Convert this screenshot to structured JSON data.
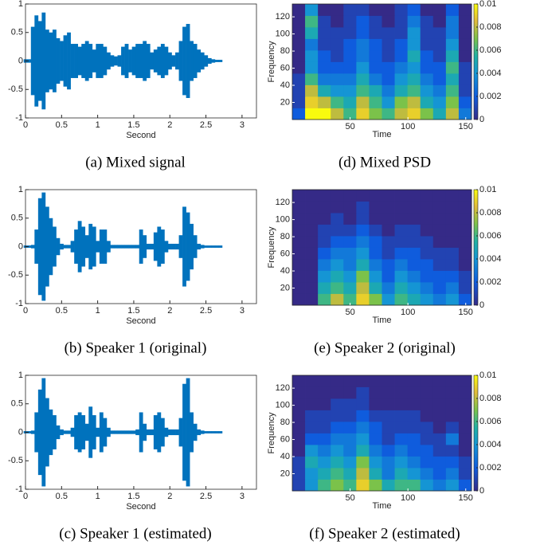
{
  "chart_data": [
    {
      "type": "waveform",
      "caption": "(a) Mixed signal",
      "xlabel": "Second",
      "color": "#0072bd",
      "x": [
        0,
        0.05,
        0.1,
        0.15,
        0.2,
        0.25,
        0.3,
        0.35,
        0.4,
        0.45,
        0.5,
        0.55,
        0.6,
        0.65,
        0.7,
        0.75,
        0.8,
        0.85,
        0.9,
        0.95,
        1,
        1.05,
        1.1,
        1.15,
        1.2,
        1.25,
        1.3,
        1.35,
        1.4,
        1.45,
        1.5,
        1.55,
        1.6,
        1.65,
        1.7,
        1.75,
        1.8,
        1.85,
        1.9,
        1.95,
        2,
        2.05,
        2.1,
        2.15,
        2.2,
        2.25,
        2.3,
        2.35,
        2.4,
        2.45,
        2.5,
        2.55,
        2.6,
        2.65,
        2.7
      ],
      "values": [
        0.03,
        0.03,
        0.6,
        0.8,
        0.7,
        0.85,
        0.55,
        0.5,
        0.55,
        0.4,
        0.35,
        0.45,
        0.5,
        0.3,
        0.3,
        0.25,
        0.3,
        0.35,
        0.3,
        0.2,
        0.3,
        0.3,
        0.25,
        0.15,
        0.1,
        0.08,
        0.1,
        0.25,
        0.3,
        0.2,
        0.25,
        0.3,
        0.3,
        0.35,
        0.3,
        0.15,
        0.2,
        0.25,
        0.3,
        0.25,
        0.15,
        0.1,
        0.15,
        0.35,
        0.6,
        0.65,
        0.35,
        0.3,
        0.2,
        0.15,
        0.1,
        0.05,
        0.03,
        0.02,
        0.02
      ],
      "xlim": [
        0,
        3.2
      ],
      "ylim": [
        -1,
        1
      ],
      "xticks": [
        0,
        0.5,
        1,
        1.5,
        2,
        2.5,
        3
      ],
      "yticks": [
        -1,
        -0.5,
        0,
        0.5,
        1
      ]
    },
    {
      "type": "waveform",
      "caption": "(b) Speaker 1 (original)",
      "xlabel": "Second",
      "color": "#0072bd",
      "x": [
        0,
        0.05,
        0.1,
        0.15,
        0.2,
        0.25,
        0.3,
        0.35,
        0.4,
        0.45,
        0.5,
        0.55,
        0.6,
        0.65,
        0.7,
        0.75,
        0.8,
        0.85,
        0.9,
        0.95,
        1,
        1.05,
        1.1,
        1.15,
        1.2,
        1.25,
        1.3,
        1.35,
        1.4,
        1.45,
        1.5,
        1.55,
        1.6,
        1.65,
        1.7,
        1.75,
        1.8,
        1.85,
        1.9,
        1.95,
        2,
        2.05,
        2.1,
        2.15,
        2.2,
        2.25,
        2.3,
        2.35,
        2.4,
        2.45,
        2.5,
        2.55,
        2.6,
        2.65,
        2.7
      ],
      "values": [
        0.02,
        0.02,
        0.03,
        0.3,
        0.85,
        0.95,
        0.7,
        0.5,
        0.35,
        0.15,
        0.05,
        0.03,
        0.03,
        0.1,
        0.3,
        0.45,
        0.35,
        0.2,
        0.4,
        0.35,
        0.1,
        0.3,
        0.3,
        0.1,
        0.03,
        0.03,
        0.03,
        0.03,
        0.03,
        0.03,
        0.03,
        0.03,
        0.3,
        0.2,
        0.05,
        0.05,
        0.25,
        0.35,
        0.3,
        0.1,
        0.05,
        0.05,
        0.05,
        0.2,
        0.7,
        0.6,
        0.4,
        0.2,
        0.05,
        0.03,
        0.02,
        0.02,
        0.02,
        0.02,
        0.02
      ],
      "xlim": [
        0,
        3.2
      ],
      "ylim": [
        -1,
        1
      ],
      "xticks": [
        0,
        0.5,
        1,
        1.5,
        2,
        2.5,
        3
      ],
      "yticks": [
        -1,
        -0.5,
        0,
        0.5,
        1
      ]
    },
    {
      "type": "waveform",
      "caption": "(c) Speaker 1 (estimated)",
      "xlabel": "Second",
      "color": "#0072bd",
      "x": [
        0,
        0.05,
        0.1,
        0.15,
        0.2,
        0.25,
        0.3,
        0.35,
        0.4,
        0.45,
        0.5,
        0.55,
        0.6,
        0.65,
        0.7,
        0.75,
        0.8,
        0.85,
        0.9,
        0.95,
        1,
        1.05,
        1.1,
        1.15,
        1.2,
        1.25,
        1.3,
        1.35,
        1.4,
        1.45,
        1.5,
        1.55,
        1.6,
        1.65,
        1.7,
        1.75,
        1.8,
        1.85,
        1.9,
        1.95,
        2,
        2.05,
        2.1,
        2.15,
        2.2,
        2.25,
        2.3,
        2.35,
        2.4,
        2.45,
        2.5,
        2.55,
        2.6,
        2.65,
        2.7
      ],
      "values": [
        0.02,
        0.02,
        0.03,
        0.35,
        0.75,
        0.95,
        0.6,
        0.4,
        0.3,
        0.12,
        0.05,
        0.03,
        0.03,
        0.08,
        0.3,
        0.35,
        0.3,
        0.15,
        0.45,
        0.3,
        0.08,
        0.35,
        0.25,
        0.08,
        0.03,
        0.03,
        0.03,
        0.03,
        0.03,
        0.03,
        0.03,
        0.05,
        0.35,
        0.15,
        0.05,
        0.05,
        0.3,
        0.35,
        0.25,
        0.08,
        0.05,
        0.05,
        0.05,
        0.25,
        0.85,
        0.95,
        0.35,
        0.15,
        0.05,
        0.03,
        0.02,
        0.02,
        0.02,
        0.02,
        0.02
      ],
      "xlim": [
        0,
        3.2
      ],
      "ylim": [
        -1,
        1
      ],
      "xticks": [
        0,
        0.5,
        1,
        1.5,
        2,
        2.5,
        3
      ],
      "yticks": [
        -1,
        -0.5,
        0,
        0.5,
        1
      ]
    },
    {
      "type": "heatmap",
      "caption": "(d) Mixed PSD",
      "xlabel": "Time",
      "ylabel": "Frequency",
      "z": [
        [
          0.002,
          0.01,
          0.01,
          0.008,
          0.006,
          0.009,
          0.007,
          0.006,
          0.008,
          0.009,
          0.007,
          0.005,
          0.008,
          0.003
        ],
        [
          0.001,
          0.009,
          0.008,
          0.006,
          0.005,
          0.008,
          0.006,
          0.004,
          0.007,
          0.008,
          0.005,
          0.004,
          0.007,
          0.002
        ],
        [
          0.001,
          0.008,
          0.005,
          0.004,
          0.004,
          0.006,
          0.005,
          0.003,
          0.005,
          0.006,
          0.004,
          0.003,
          0.006,
          0.001
        ],
        [
          0.001,
          0.006,
          0.003,
          0.003,
          0.003,
          0.005,
          0.003,
          0.002,
          0.004,
          0.005,
          0.003,
          0.002,
          0.005,
          0.001
        ],
        [
          0,
          0.004,
          0.002,
          0.002,
          0.002,
          0.004,
          0.002,
          0.002,
          0.003,
          0.004,
          0.002,
          0.002,
          0.006,
          0.001
        ],
        [
          0,
          0.004,
          0.002,
          0.001,
          0.002,
          0.003,
          0.002,
          0.001,
          0.002,
          0.005,
          0.002,
          0.001,
          0.005,
          0
        ],
        [
          0,
          0.003,
          0.001,
          0.001,
          0.002,
          0.003,
          0.002,
          0.001,
          0.002,
          0.004,
          0.001,
          0.001,
          0.004,
          0
        ],
        [
          0,
          0.005,
          0.001,
          0.001,
          0.001,
          0.002,
          0.001,
          0.001,
          0.001,
          0.004,
          0.001,
          0.001,
          0.003,
          0
        ],
        [
          0,
          0.006,
          0.001,
          0,
          0.001,
          0.002,
          0.001,
          0,
          0.001,
          0.003,
          0.001,
          0,
          0.003,
          0
        ],
        [
          0,
          0.004,
          0,
          0,
          0.001,
          0.001,
          0,
          0,
          0.001,
          0.002,
          0,
          0,
          0.002,
          0
        ]
      ],
      "xlim": [
        0,
        155
      ],
      "ylim": [
        0,
        135
      ],
      "xticks": [
        50,
        100,
        150
      ],
      "yticks": [
        20,
        40,
        60,
        80,
        100,
        120
      ],
      "zlim": [
        0,
        0.01
      ],
      "zticks": [
        0,
        0.002,
        0.004,
        0.006,
        0.008,
        0.01
      ]
    },
    {
      "type": "heatmap",
      "caption": "(e) Speaker 2 (original)",
      "xlabel": "Time",
      "ylabel": "Frequency",
      "z": [
        [
          0,
          0,
          0.006,
          0.008,
          0.006,
          0.009,
          0.007,
          0.004,
          0.006,
          0.005,
          0.004,
          0.003,
          0.004,
          0.002
        ],
        [
          0,
          0,
          0.005,
          0.006,
          0.005,
          0.008,
          0.005,
          0.003,
          0.005,
          0.004,
          0.003,
          0.002,
          0.003,
          0.001
        ],
        [
          0,
          0,
          0.004,
          0.005,
          0.004,
          0.007,
          0.004,
          0.002,
          0.004,
          0.003,
          0.002,
          0.002,
          0.002,
          0.001
        ],
        [
          0,
          0,
          0.003,
          0.004,
          0.003,
          0.005,
          0.003,
          0.002,
          0.003,
          0.002,
          0.002,
          0.001,
          0.001,
          0
        ],
        [
          0,
          0,
          0.002,
          0.003,
          0.003,
          0.004,
          0.002,
          0.001,
          0.002,
          0.002,
          0.001,
          0.001,
          0.001,
          0
        ],
        [
          0,
          0,
          0.001,
          0.002,
          0.002,
          0.003,
          0.002,
          0.001,
          0.001,
          0.001,
          0.001,
          0,
          0,
          0
        ],
        [
          0,
          0,
          0.001,
          0.001,
          0.001,
          0.002,
          0.001,
          0,
          0.001,
          0.001,
          0,
          0,
          0,
          0
        ],
        [
          0,
          0,
          0,
          0.001,
          0,
          0.001,
          0,
          0,
          0,
          0,
          0,
          0,
          0,
          0
        ],
        [
          0,
          0,
          0,
          0,
          0,
          0.001,
          0,
          0,
          0,
          0,
          0,
          0,
          0,
          0
        ],
        [
          0,
          0,
          0,
          0,
          0,
          0,
          0,
          0,
          0,
          0,
          0,
          0,
          0,
          0
        ]
      ],
      "xlim": [
        0,
        155
      ],
      "ylim": [
        0,
        135
      ],
      "xticks": [
        50,
        100,
        150
      ],
      "yticks": [
        20,
        40,
        60,
        80,
        100,
        120
      ],
      "zlim": [
        0,
        0.01
      ],
      "zticks": [
        0,
        0.002,
        0.004,
        0.006,
        0.008,
        0.01
      ]
    },
    {
      "type": "heatmap",
      "caption": "(f) Speaker 2 (estimated)",
      "xlabel": "Time",
      "ylabel": "Frequency",
      "z": [
        [
          0.001,
          0.004,
          0.006,
          0.007,
          0.006,
          0.009,
          0.007,
          0.005,
          0.006,
          0.006,
          0.004,
          0.003,
          0.004,
          0.002
        ],
        [
          0.001,
          0.004,
          0.005,
          0.006,
          0.005,
          0.008,
          0.005,
          0.003,
          0.005,
          0.004,
          0.003,
          0.002,
          0.003,
          0.001
        ],
        [
          0.001,
          0.005,
          0.004,
          0.005,
          0.004,
          0.007,
          0.004,
          0.003,
          0.004,
          0.003,
          0.002,
          0.002,
          0.002,
          0.001
        ],
        [
          0,
          0.004,
          0.003,
          0.004,
          0.003,
          0.005,
          0.003,
          0.002,
          0.003,
          0.002,
          0.002,
          0.001,
          0.001,
          0
        ],
        [
          0,
          0.002,
          0.002,
          0.003,
          0.003,
          0.004,
          0.002,
          0.001,
          0.002,
          0.002,
          0.001,
          0.001,
          0.003,
          0
        ],
        [
          0,
          0.001,
          0.001,
          0.002,
          0.002,
          0.003,
          0.002,
          0.001,
          0.001,
          0.001,
          0.001,
          0,
          0.001,
          0
        ],
        [
          0,
          0.001,
          0.001,
          0.001,
          0.001,
          0.002,
          0.001,
          0.001,
          0.001,
          0.001,
          0,
          0,
          0,
          0
        ],
        [
          0,
          0,
          0,
          0.001,
          0.001,
          0.001,
          0,
          0,
          0,
          0,
          0,
          0,
          0,
          0
        ],
        [
          0,
          0,
          0,
          0,
          0,
          0.001,
          0,
          0,
          0,
          0,
          0,
          0,
          0,
          0
        ],
        [
          0,
          0,
          0,
          0,
          0,
          0,
          0,
          0,
          0,
          0,
          0,
          0,
          0,
          0
        ]
      ],
      "xlim": [
        0,
        155
      ],
      "ylim": [
        0,
        135
      ],
      "xticks": [
        50,
        100,
        150
      ],
      "yticks": [
        20,
        40,
        60,
        80,
        100,
        120
      ],
      "zlim": [
        0,
        0.01
      ],
      "zticks": [
        0,
        0.002,
        0.004,
        0.006,
        0.008,
        0.01
      ]
    }
  ]
}
